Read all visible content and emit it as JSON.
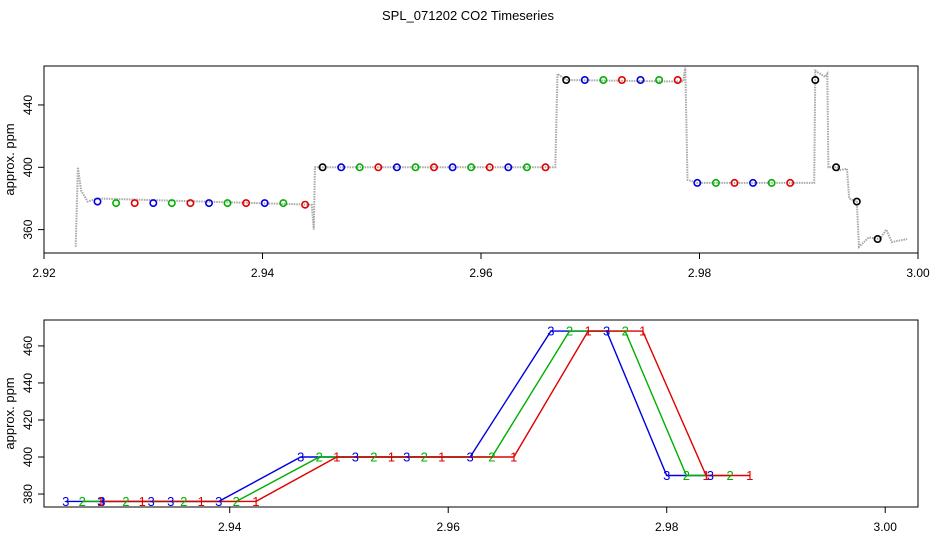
{
  "title": "SPL_071202  CO2 Timeseries",
  "colors": {
    "red": "#e00000",
    "green": "#00b000",
    "blue": "#0000e0",
    "black": "#000000",
    "trace": "#a8a8a8"
  },
  "chart_data": [
    {
      "type": "scatter",
      "ylabel": "approx. ppm",
      "xlim": [
        2.92,
        3.0
      ],
      "ylim": [
        345,
        465
      ],
      "xticks": [
        "2.92",
        "2.94",
        "2.96",
        "2.98",
        "3.00"
      ],
      "yticks": [
        "360",
        "400",
        "440"
      ],
      "grid": false,
      "trace": [
        [
          2.9229,
          349
        ],
        [
          2.9231,
          400
        ],
        [
          2.9234,
          385
        ],
        [
          2.924,
          378
        ],
        [
          2.9249,
          380
        ],
        [
          2.9445,
          376
        ],
        [
          2.9447,
          360
        ],
        [
          2.9448,
          400
        ],
        [
          2.9455,
          400
        ],
        [
          2.9668,
          400
        ],
        [
          2.967,
          460
        ],
        [
          2.9678,
          456
        ],
        [
          2.9785,
          455
        ],
        [
          2.9787,
          464
        ],
        [
          2.9789,
          392
        ],
        [
          2.9798,
          390
        ],
        [
          2.9905,
          390
        ],
        [
          2.9906,
          462
        ],
        [
          2.9915,
          458
        ],
        [
          2.9917,
          460
        ],
        [
          2.9918,
          400
        ],
        [
          2.9926,
          400
        ],
        [
          2.9927,
          398
        ],
        [
          2.9935,
          399
        ],
        [
          2.9937,
          380
        ],
        [
          2.9944,
          378
        ],
        [
          2.9946,
          349
        ],
        [
          2.9955,
          355
        ],
        [
          2.9965,
          354
        ],
        [
          2.9971,
          360
        ],
        [
          2.9976,
          352
        ],
        [
          2.999,
          354
        ]
      ],
      "points": [
        {
          "x": 2.9249,
          "y": 378,
          "c": "blue"
        },
        {
          "x": 2.9266,
          "y": 377,
          "c": "green"
        },
        {
          "x": 2.9283,
          "y": 377,
          "c": "red"
        },
        {
          "x": 2.93,
          "y": 377,
          "c": "blue"
        },
        {
          "x": 2.9317,
          "y": 377,
          "c": "green"
        },
        {
          "x": 2.9334,
          "y": 377,
          "c": "red"
        },
        {
          "x": 2.9351,
          "y": 377,
          "c": "blue"
        },
        {
          "x": 2.9368,
          "y": 377,
          "c": "green"
        },
        {
          "x": 2.9385,
          "y": 377,
          "c": "red"
        },
        {
          "x": 2.9402,
          "y": 377,
          "c": "blue"
        },
        {
          "x": 2.9419,
          "y": 377,
          "c": "green"
        },
        {
          "x": 2.9439,
          "y": 376,
          "c": "red"
        },
        {
          "x": 2.9455,
          "y": 400,
          "c": "black"
        },
        {
          "x": 2.9472,
          "y": 400,
          "c": "blue"
        },
        {
          "x": 2.9489,
          "y": 400,
          "c": "green"
        },
        {
          "x": 2.9506,
          "y": 400,
          "c": "red"
        },
        {
          "x": 2.9523,
          "y": 400,
          "c": "blue"
        },
        {
          "x": 2.954,
          "y": 400,
          "c": "green"
        },
        {
          "x": 2.9557,
          "y": 400,
          "c": "red"
        },
        {
          "x": 2.9574,
          "y": 400,
          "c": "blue"
        },
        {
          "x": 2.9591,
          "y": 400,
          "c": "green"
        },
        {
          "x": 2.9608,
          "y": 400,
          "c": "red"
        },
        {
          "x": 2.9625,
          "y": 400,
          "c": "blue"
        },
        {
          "x": 2.9642,
          "y": 400,
          "c": "green"
        },
        {
          "x": 2.9659,
          "y": 400,
          "c": "red"
        },
        {
          "x": 2.9678,
          "y": 456,
          "c": "black"
        },
        {
          "x": 2.9695,
          "y": 456,
          "c": "blue"
        },
        {
          "x": 2.9712,
          "y": 456,
          "c": "green"
        },
        {
          "x": 2.9729,
          "y": 456,
          "c": "red"
        },
        {
          "x": 2.9746,
          "y": 456,
          "c": "blue"
        },
        {
          "x": 2.9763,
          "y": 456,
          "c": "green"
        },
        {
          "x": 2.978,
          "y": 456,
          "c": "red"
        },
        {
          "x": 2.9798,
          "y": 390,
          "c": "blue"
        },
        {
          "x": 2.9815,
          "y": 390,
          "c": "green"
        },
        {
          "x": 2.9832,
          "y": 390,
          "c": "red"
        },
        {
          "x": 2.9849,
          "y": 390,
          "c": "blue"
        },
        {
          "x": 2.9866,
          "y": 390,
          "c": "green"
        },
        {
          "x": 2.9883,
          "y": 390,
          "c": "red"
        },
        {
          "x": 2.9906,
          "y": 456,
          "c": "black"
        },
        {
          "x": 2.9925,
          "y": 400,
          "c": "black"
        },
        {
          "x": 2.9944,
          "y": 378,
          "c": "black"
        },
        {
          "x": 2.9963,
          "y": 354,
          "c": "black"
        }
      ]
    },
    {
      "type": "line",
      "ylabel": "approx. ppm",
      "xlim": [
        2.923,
        3.003
      ],
      "ylim": [
        373,
        474
      ],
      "xticks": [
        "2.94",
        "2.96",
        "2.98",
        "3.00"
      ],
      "yticks": [
        "380",
        "400",
        "420",
        "440",
        "460"
      ],
      "grid": false,
      "series": [
        {
          "name": "3",
          "color": "blue",
          "points": [
            [
              2.925,
              376
            ],
            [
              2.9282,
              376
            ],
            [
              2.9283,
              376
            ],
            [
              2.9328,
              376
            ],
            [
              2.9346,
              376
            ],
            [
              2.939,
              376
            ],
            [
              2.9465,
              400
            ],
            [
              2.9515,
              400
            ],
            [
              2.9562,
              400
            ],
            [
              2.962,
              400
            ],
            [
              2.9694,
              468
            ],
            [
              2.9745,
              468
            ],
            [
              2.98,
              390
            ],
            [
              2.984,
              390
            ]
          ]
        },
        {
          "name": "2",
          "color": "green",
          "points": [
            [
              2.9265,
              376
            ],
            [
              2.9305,
              376
            ],
            [
              2.9358,
              376
            ],
            [
              2.9406,
              376
            ],
            [
              2.9482,
              400
            ],
            [
              2.9532,
              400
            ],
            [
              2.9578,
              400
            ],
            [
              2.964,
              400
            ],
            [
              2.9711,
              468
            ],
            [
              2.9762,
              468
            ],
            [
              2.9818,
              390
            ],
            [
              2.9858,
              390
            ]
          ]
        },
        {
          "name": "1",
          "color": "red",
          "points": [
            [
              2.9282,
              376
            ],
            [
              2.932,
              376
            ],
            [
              2.9374,
              376
            ],
            [
              2.9424,
              376
            ],
            [
              2.9498,
              400
            ],
            [
              2.9548,
              400
            ],
            [
              2.9594,
              400
            ],
            [
              2.966,
              400
            ],
            [
              2.9728,
              468
            ],
            [
              2.9778,
              468
            ],
            [
              2.9836,
              390
            ],
            [
              2.9876,
              390
            ]
          ]
        }
      ]
    }
  ]
}
